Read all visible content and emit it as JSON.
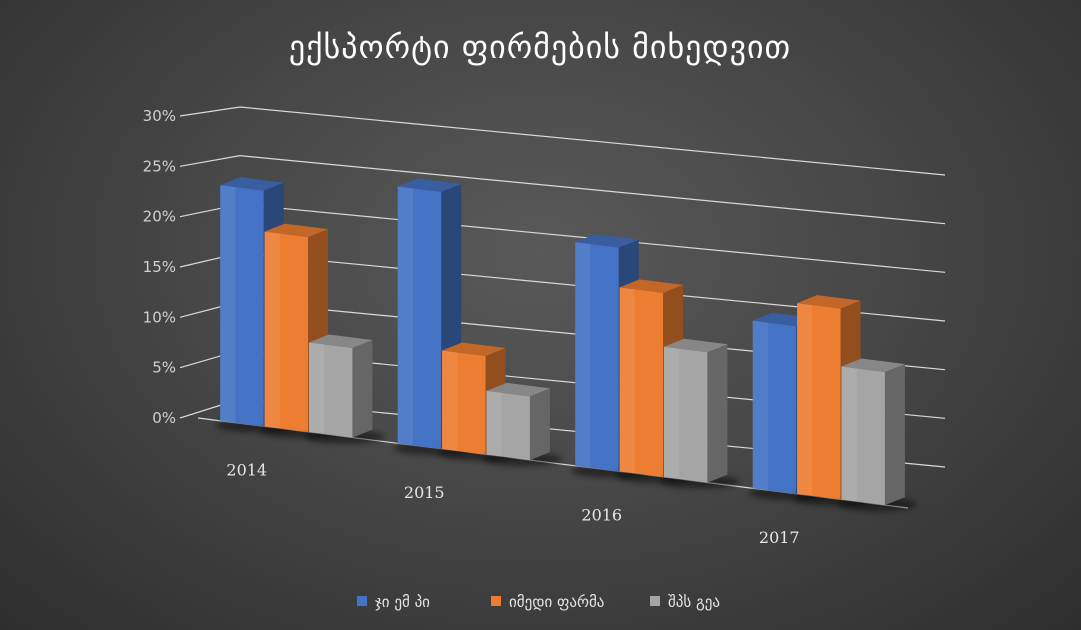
{
  "chart_data": {
    "type": "bar",
    "title": "ექსპორტი ფირმების მიხედვით",
    "categories": [
      "2014",
      "2015",
      "2016",
      "2017"
    ],
    "series": [
      {
        "name": "ჯი ემ პი",
        "values": [
          0.235,
          0.26,
          0.23,
          0.175
        ],
        "color": "#4472c4"
      },
      {
        "name": "იმედი ფარმა",
        "values": [
          0.195,
          0.1,
          0.19,
          0.2
        ],
        "color": "#ed7d31"
      },
      {
        "name": "შპს გეა",
        "values": [
          0.09,
          0.065,
          0.135,
          0.14
        ],
        "color": "#a5a5a5"
      }
    ],
    "yticks": [
      "0%",
      "5%",
      "10%",
      "15%",
      "20%",
      "25%",
      "30%"
    ],
    "ylim": [
      0,
      0.3
    ],
    "grid": true,
    "legend_position": "bottom",
    "perspective": "3d"
  }
}
